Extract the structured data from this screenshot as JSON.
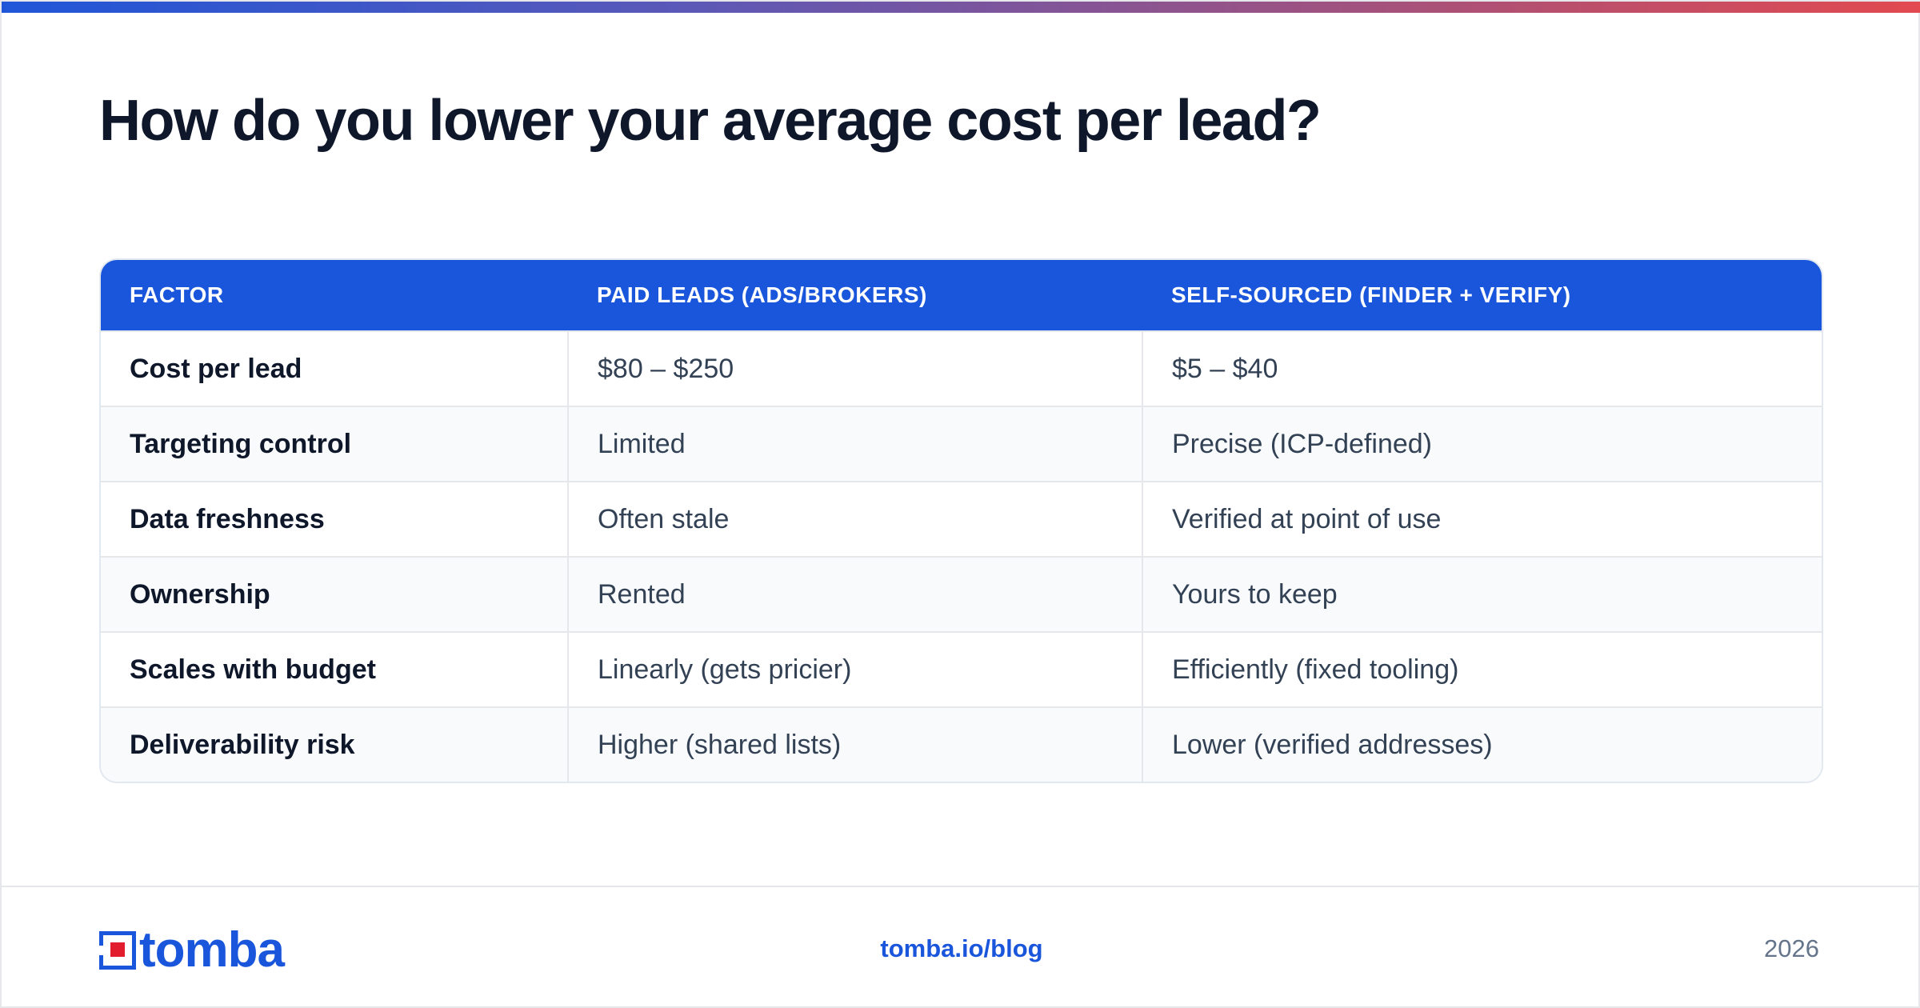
{
  "title": "How do you lower your average cost per lead?",
  "table": {
    "headers": [
      "FACTOR",
      "PAID LEADS (ADS/BROKERS)",
      "SELF-SOURCED (FINDER + VERIFY)"
    ],
    "rows": [
      [
        "Cost per lead",
        "$80 – $250",
        "$5 – $40"
      ],
      [
        "Targeting control",
        "Limited",
        "Precise (ICP-defined)"
      ],
      [
        "Data freshness",
        "Often stale",
        "Verified at point of use"
      ],
      [
        "Ownership",
        "Rented",
        "Yours to keep"
      ],
      [
        "Scales with budget",
        "Linearly (gets pricier)",
        "Efficiently (fixed tooling)"
      ],
      [
        "Deliverability risk",
        "Higher (shared lists)",
        "Lower (verified addresses)"
      ]
    ]
  },
  "footer": {
    "logo_text": "tomba",
    "link": "tomba.io/blog",
    "year": "2026"
  },
  "colors": {
    "accent": "#1a56db",
    "logo_red": "#e11d2e"
  }
}
